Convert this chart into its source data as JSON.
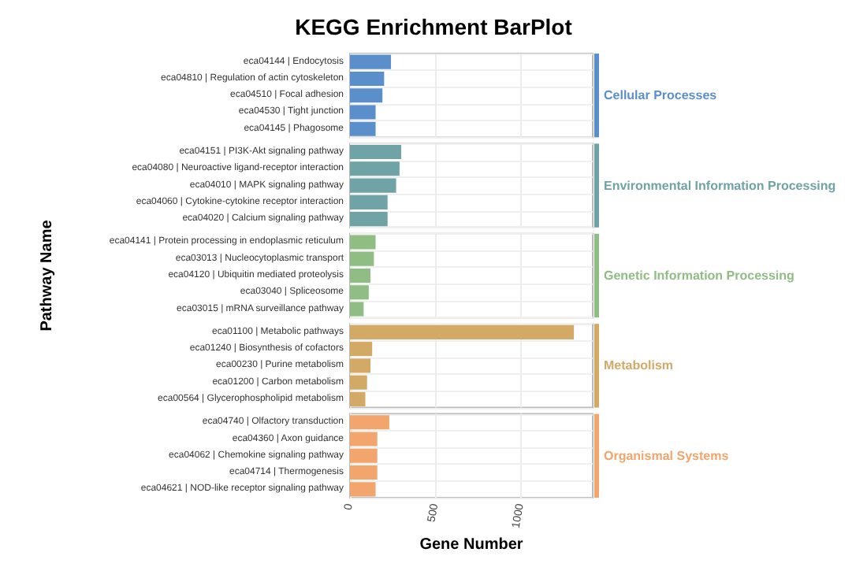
{
  "chart_data": {
    "type": "bar",
    "orientation": "horizontal",
    "title": "KEGG Enrichment BarPlot",
    "xlabel": "Gene Number",
    "ylabel": "Pathway Name",
    "xlim": [
      0,
      1420
    ],
    "xticks": [
      0,
      500,
      1000
    ],
    "grid": true,
    "legend": false,
    "categories": [
      "eca04144 | Endocytosis",
      "eca04810 | Regulation of actin cytoskeleton",
      "eca04510 | Focal adhesion",
      "eca04530 | Tight junction",
      "eca04145 | Phagosome",
      "eca04151 | PI3K-Akt signaling pathway",
      "eca04080 | Neuroactive ligand-receptor interaction",
      "eca04010 | MAPK signaling pathway",
      "eca04060 | Cytokine-cytokine receptor interaction",
      "eca04020 | Calcium signaling pathway",
      "eca04141 | Protein processing in endoplasmic reticulum",
      "eca03013 | Nucleocytoplasmic transport",
      "eca04120 | Ubiquitin mediated proteolysis",
      "eca03040 | Spliceosome",
      "eca03015 | mRNA surveillance pathway",
      "eca01100 | Metabolic pathways",
      "eca01240 | Biosynthesis of cofactors",
      "eca00230 | Purine metabolism",
      "eca01200 | Carbon metabolism",
      "eca00564 | Glycerophospholipid metabolism",
      "eca04740 | Olfactory transduction",
      "eca04360 | Axon guidance",
      "eca04062 | Chemokine signaling pathway",
      "eca04714 | Thermogenesis",
      "eca04621 | NOD-like receptor signaling pathway"
    ],
    "series": [
      {
        "name": "Cellular Processes",
        "color": "#5b8fcb",
        "values": [
          240,
          200,
          190,
          150,
          150,
          null,
          null,
          null,
          null,
          null,
          null,
          null,
          null,
          null,
          null,
          null,
          null,
          null,
          null,
          null,
          null,
          null,
          null,
          null,
          null
        ]
      },
      {
        "name": "Environmental Information Processing",
        "color": "#6fa3a5",
        "values": [
          null,
          null,
          null,
          null,
          null,
          300,
          290,
          270,
          220,
          220,
          null,
          null,
          null,
          null,
          null,
          null,
          null,
          null,
          null,
          null,
          null,
          null,
          null,
          null,
          null
        ]
      },
      {
        "name": "Genetic Information Processing",
        "color": "#8fbd84",
        "values": [
          null,
          null,
          null,
          null,
          null,
          null,
          null,
          null,
          null,
          null,
          150,
          140,
          120,
          110,
          80,
          null,
          null,
          null,
          null,
          null,
          null,
          null,
          null,
          null,
          null
        ]
      },
      {
        "name": "Metabolism",
        "color": "#d2aa66",
        "values": [
          null,
          null,
          null,
          null,
          null,
          null,
          null,
          null,
          null,
          null,
          null,
          null,
          null,
          null,
          null,
          1310,
          130,
          120,
          100,
          90,
          null,
          null,
          null,
          null,
          null
        ]
      },
      {
        "name": "Organismal Systems",
        "color": "#f2a56c",
        "values": [
          null,
          null,
          null,
          null,
          null,
          null,
          null,
          null,
          null,
          null,
          null,
          null,
          null,
          null,
          null,
          null,
          null,
          null,
          null,
          null,
          230,
          160,
          160,
          160,
          150
        ]
      }
    ]
  }
}
